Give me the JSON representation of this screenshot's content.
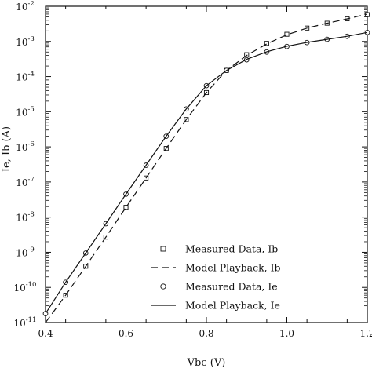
{
  "chart_data": {
    "type": "line",
    "xlabel": "Vbc (V)",
    "ylabel": "Ie, Ib (A)",
    "xlim": [
      0.4,
      1.2
    ],
    "ylim_log10": [
      -11,
      -2
    ],
    "yscale": "log",
    "x_ticks": [
      "0.4",
      "0.6",
      "0.8",
      "1.0",
      "1.2"
    ],
    "x_tick_values": [
      0.4,
      0.6,
      0.8,
      1.0,
      1.2
    ],
    "y_ticks": [
      {
        "base": "10",
        "exp": "-11"
      },
      {
        "base": "10",
        "exp": "-10"
      },
      {
        "base": "10",
        "exp": "-9"
      },
      {
        "base": "10",
        "exp": "-8"
      },
      {
        "base": "10",
        "exp": "-7"
      },
      {
        "base": "10",
        "exp": "-6"
      },
      {
        "base": "10",
        "exp": "-5"
      },
      {
        "base": "10",
        "exp": "-4"
      },
      {
        "base": "10",
        "exp": "-3"
      },
      {
        "base": "10",
        "exp": "-2"
      }
    ],
    "y_tick_exponents": [
      -11,
      -10,
      -9,
      -8,
      -7,
      -6,
      -5,
      -4,
      -3,
      -2
    ],
    "grid": false,
    "legend_position": "bottom-right",
    "series": [
      {
        "name": "Measured Data, Ib",
        "kind": "markers",
        "marker": "square",
        "x": [
          0.45,
          0.5,
          0.55,
          0.6,
          0.65,
          0.7,
          0.75,
          0.8,
          0.85,
          0.9,
          0.95,
          1.0,
          1.05,
          1.1,
          1.15,
          1.2
        ],
        "y": [
          6e-11,
          4e-10,
          2.7e-09,
          1.9e-08,
          1.3e-07,
          9e-07,
          6e-06,
          3.5e-05,
          0.00015,
          0.00042,
          0.00088,
          0.0016,
          0.0024,
          0.0033,
          0.0044,
          0.0058
        ]
      },
      {
        "name": "Model Playback, Ib",
        "kind": "line",
        "dash": "dashed",
        "x": [
          0.4,
          0.45,
          0.5,
          0.55,
          0.6,
          0.65,
          0.7,
          0.75,
          0.8,
          0.85,
          0.9,
          0.95,
          1.0,
          1.05,
          1.1,
          1.15,
          1.2
        ],
        "y": [
          1e-11,
          6e-11,
          4e-10,
          2.7e-09,
          1.9e-08,
          1.3e-07,
          9e-07,
          6e-06,
          3.5e-05,
          0.00015,
          0.0004,
          0.00085,
          0.00155,
          0.0024,
          0.0033,
          0.0044,
          0.006
        ]
      },
      {
        "name": "Measured Data, Ie",
        "kind": "markers",
        "marker": "circle",
        "x": [
          0.4,
          0.45,
          0.5,
          0.55,
          0.6,
          0.65,
          0.7,
          0.75,
          0.8,
          0.85,
          0.9,
          0.95,
          1.0,
          1.05,
          1.1,
          1.15,
          1.2
        ],
        "y": [
          1.8e-11,
          1.4e-10,
          9.5e-10,
          6.5e-09,
          4.5e-08,
          3e-07,
          2e-06,
          1.2e-05,
          5.5e-05,
          0.00015,
          0.0003,
          0.0005,
          0.00072,
          0.00093,
          0.00115,
          0.0014,
          0.0018
        ]
      },
      {
        "name": "Model Playback, Ie",
        "kind": "line",
        "dash": "solid",
        "x": [
          0.4,
          0.45,
          0.5,
          0.55,
          0.6,
          0.65,
          0.7,
          0.75,
          0.8,
          0.85,
          0.9,
          0.95,
          1.0,
          1.05,
          1.1,
          1.15,
          1.2
        ],
        "y": [
          1.8e-11,
          1.4e-10,
          9.5e-10,
          6.5e-09,
          4.5e-08,
          3e-07,
          2e-06,
          1.2e-05,
          5.5e-05,
          0.00015,
          0.00031,
          0.00051,
          0.00073,
          0.00094,
          0.00115,
          0.0014,
          0.0018
        ]
      }
    ]
  }
}
